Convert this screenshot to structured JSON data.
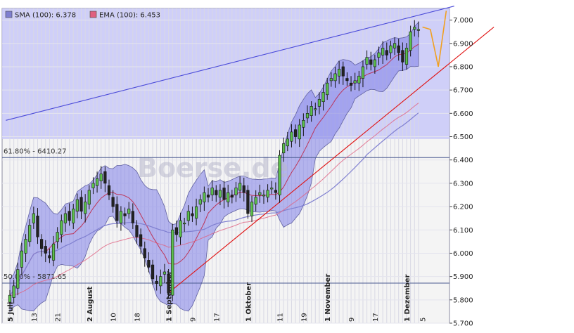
{
  "chart_data": {
    "type": "candlestick",
    "title": "",
    "watermark": "Boerse.de",
    "xlabel": "",
    "ylabel": "",
    "ylim": [
      5.7,
      7.05
    ],
    "y_ticks": [
      {
        "value": 5.7,
        "label": "5.700"
      },
      {
        "value": 5.8,
        "label": "5.800"
      },
      {
        "value": 5.9,
        "label": "5.900"
      },
      {
        "value": 6.0,
        "label": "6.000"
      },
      {
        "value": 6.1,
        "label": "6.100"
      },
      {
        "value": 6.2,
        "label": "6.200"
      },
      {
        "value": 6.3,
        "label": "6.300"
      },
      {
        "value": 6.4,
        "label": "6.400"
      },
      {
        "value": 6.5,
        "label": "6.500"
      },
      {
        "value": 6.6,
        "label": "6.600"
      },
      {
        "value": 6.7,
        "label": "6.700"
      },
      {
        "value": 6.8,
        "label": "6.800"
      },
      {
        "value": 6.9,
        "label": "6.900"
      },
      {
        "value": 7.0,
        "label": "7.000"
      }
    ],
    "x_ticks": [
      {
        "day": 0,
        "label": "5 Juli",
        "bold": true
      },
      {
        "day": 6,
        "label": "13",
        "bold": false
      },
      {
        "day": 12,
        "label": "21",
        "bold": false
      },
      {
        "day": 20,
        "label": "2 August",
        "bold": true
      },
      {
        "day": 26,
        "label": "10",
        "bold": false
      },
      {
        "day": 32,
        "label": "18",
        "bold": false
      },
      {
        "day": 40,
        "label": "1 September",
        "bold": true
      },
      {
        "day": 46,
        "label": "9",
        "bold": false
      },
      {
        "day": 52,
        "label": "17",
        "bold": false
      },
      {
        "day": 60,
        "label": "1 Oktober",
        "bold": true
      },
      {
        "day": 68,
        "label": "11",
        "bold": false
      },
      {
        "day": 74,
        "label": "19",
        "bold": false
      },
      {
        "day": 80,
        "label": "1 November",
        "bold": true
      },
      {
        "day": 86,
        "label": "9",
        "bold": false
      },
      {
        "day": 92,
        "label": "17",
        "bold": false
      },
      {
        "day": 100,
        "label": "1 Dezember",
        "bold": true
      },
      {
        "day": 104,
        "label": "5",
        "bold": false
      }
    ],
    "legend": [
      {
        "label": "SMA (100): 6.378",
        "color": "#7f7fd0"
      },
      {
        "label": "EMA (100): 6.453",
        "color": "#e06080"
      }
    ],
    "fibonacci": [
      {
        "label": "61.80% - 6410.27",
        "value": 6.41027
      },
      {
        "label": "50.00% - 5871.65",
        "value": 5.87165
      }
    ],
    "upper_zone": {
      "from": 6.49,
      "to": 7.05,
      "color": "#c8c8f8"
    },
    "close": [
      5.82,
      5.86,
      5.93,
      6.01,
      6.06,
      6.12,
      6.17,
      6.07,
      6.02,
      6.0,
      5.98,
      6.04,
      6.09,
      6.14,
      6.17,
      6.14,
      6.19,
      6.23,
      6.18,
      6.22,
      6.27,
      6.3,
      6.32,
      6.34,
      6.3,
      6.25,
      6.2,
      6.14,
      6.18,
      6.16,
      6.19,
      6.13,
      6.07,
      6.03,
      5.98,
      5.94,
      5.89,
      5.87,
      5.9,
      5.92,
      5.83,
      6.1,
      6.08,
      6.14,
      6.13,
      6.18,
      6.16,
      6.2,
      6.23,
      6.26,
      6.24,
      6.28,
      6.25,
      6.27,
      6.23,
      6.26,
      6.24,
      6.28,
      6.3,
      6.26,
      6.17,
      6.22,
      6.24,
      6.26,
      6.25,
      6.27,
      6.28,
      6.26,
      6.42,
      6.47,
      6.49,
      6.52,
      6.5,
      6.55,
      6.57,
      6.6,
      6.63,
      6.62,
      6.66,
      6.69,
      6.73,
      6.75,
      6.77,
      6.79,
      6.76,
      6.74,
      6.72,
      6.74,
      6.76,
      6.8,
      6.84,
      6.81,
      6.83,
      6.86,
      6.88,
      6.85,
      6.89,
      6.9,
      6.86,
      6.82,
      6.88,
      6.95,
      6.97,
      6.96
    ],
    "forecast_path": [
      {
        "day": 104,
        "value": 6.97
      },
      {
        "day": 106,
        "value": 6.96
      },
      {
        "day": 108,
        "value": 6.8
      },
      {
        "day": 110,
        "value": 7.04
      }
    ],
    "trendlines": [
      {
        "name": "upper-channel",
        "color": "#4a4ad8",
        "from": {
          "day": -1,
          "value": 6.57
        },
        "to": {
          "day": 112,
          "value": 7.06
        }
      },
      {
        "name": "support-trend",
        "color": "#e01010",
        "from": {
          "day": 40,
          "value": 5.83
        },
        "to": {
          "day": 122,
          "value": 6.97
        }
      }
    ]
  }
}
